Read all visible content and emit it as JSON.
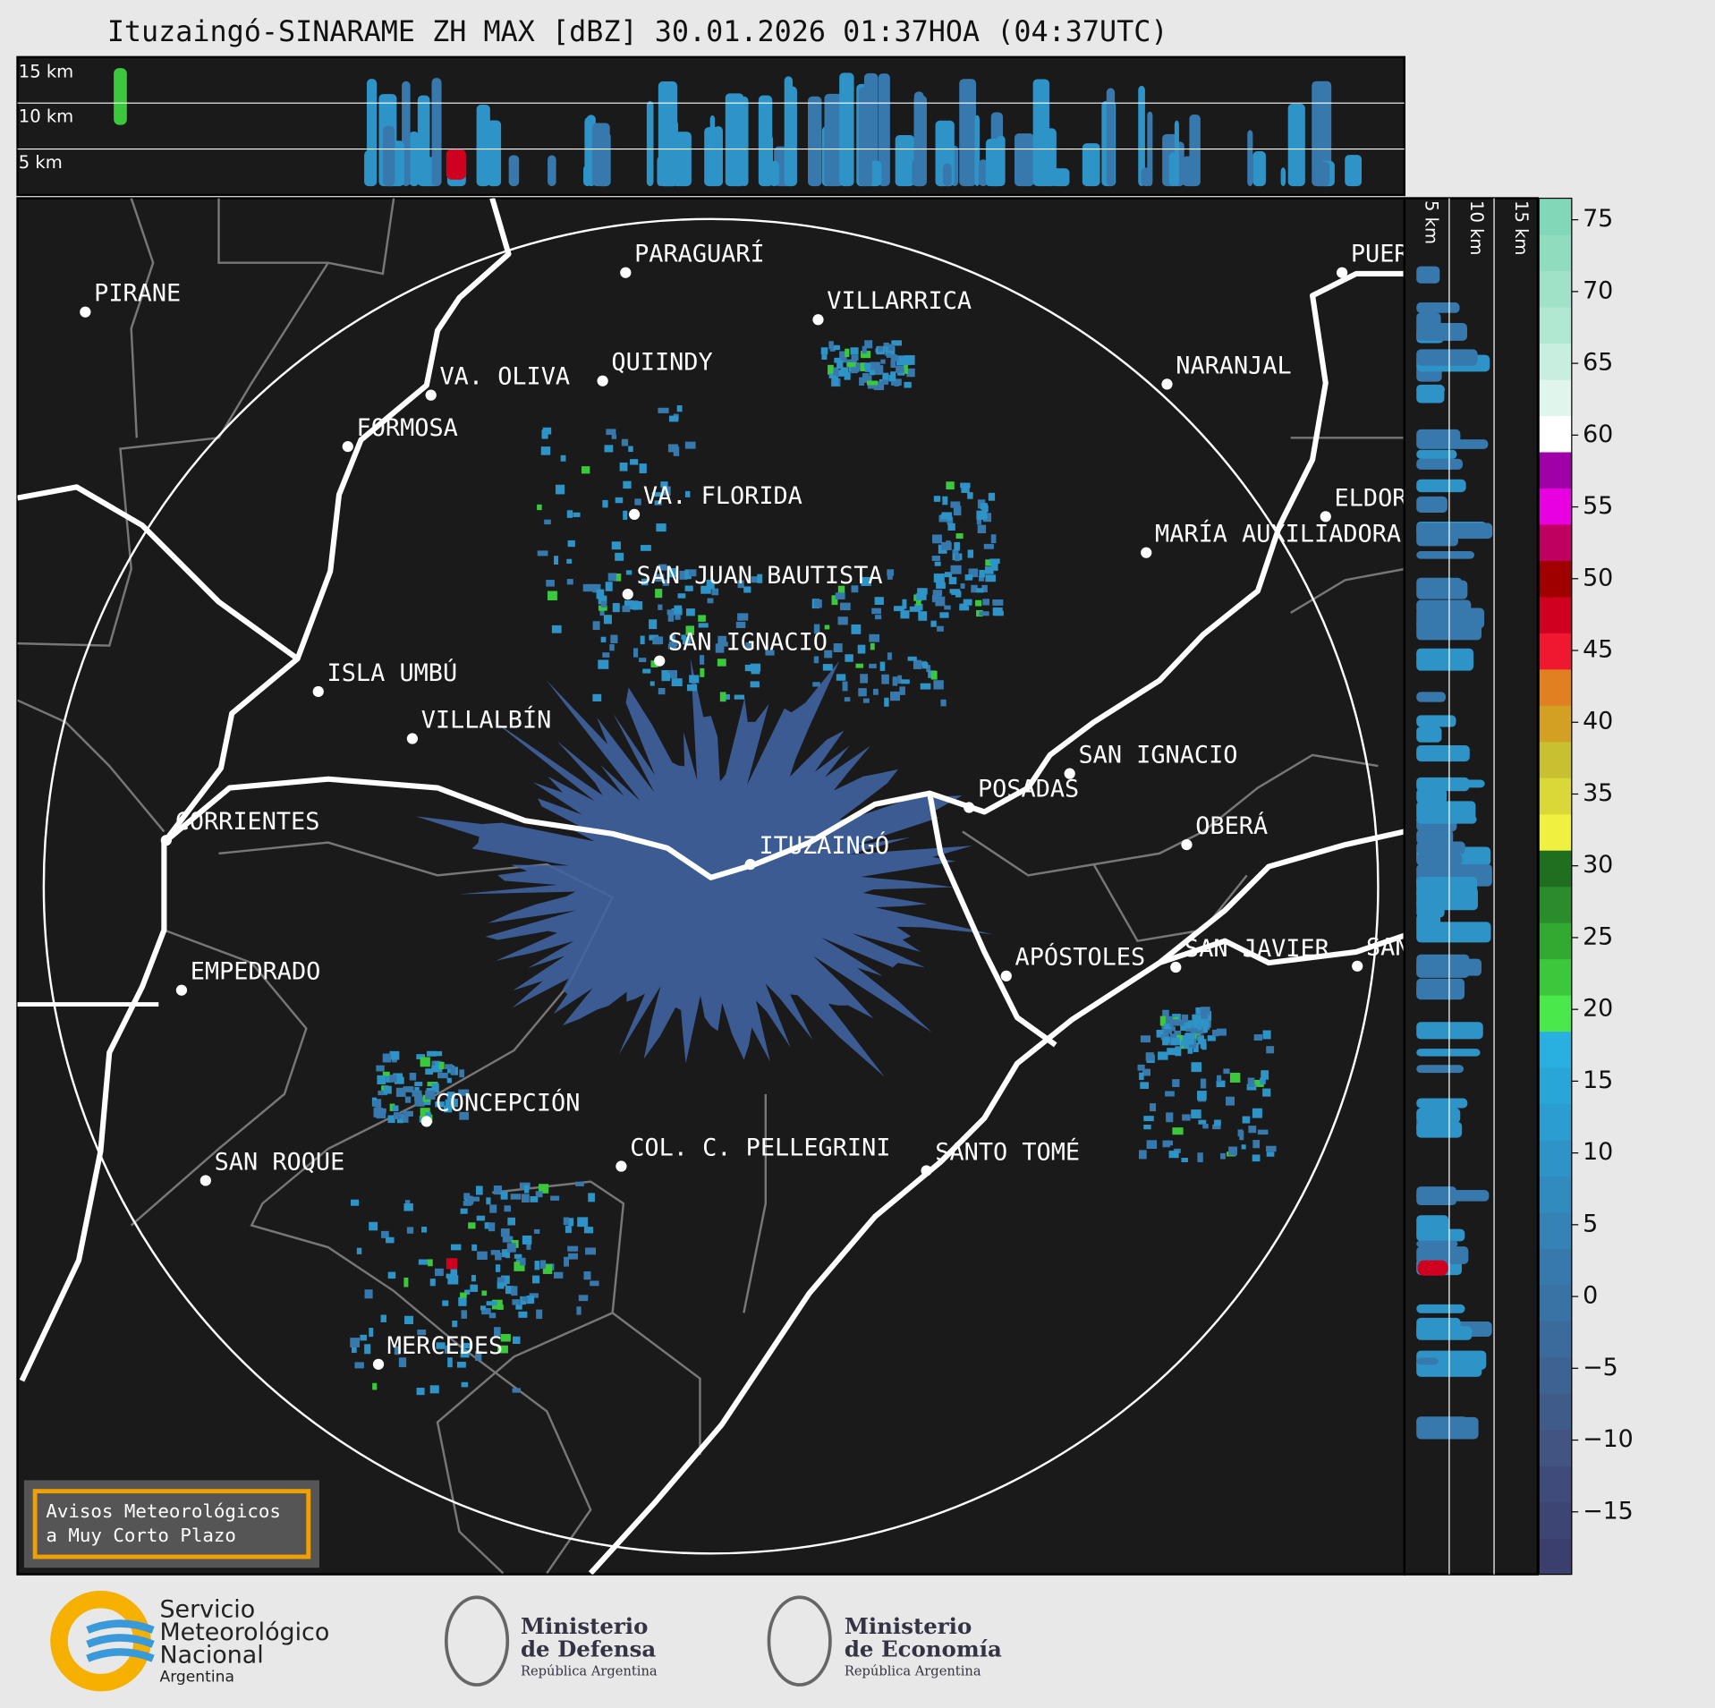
{
  "title": "Ituzaingó-SINARAME ZH MAX [dBZ] 30.01.2026 01:37HOA (04:37UTC)",
  "top_panel": {
    "labels": [
      "15 km",
      "10 km",
      "5 km"
    ]
  },
  "side_panel": {
    "labels": [
      "5 km",
      "10 km",
      "15 km"
    ]
  },
  "cities": [
    "PARAGUARÍ",
    "PIRANE",
    "VILLARRICA",
    "QUIINDY",
    "VA. OLIVA",
    "FORMOSA",
    "NARANJAL",
    "VA. FLORIDA",
    "ELDORADO",
    "MARÍA AUXILIADORA",
    "SAN JUAN BAUTISTA",
    "SAN IGNACIO",
    "ISLA UMBÚ",
    "VILLALBÍN",
    "SAN IGNACIO",
    "POSADAS",
    "CORRIENTES",
    "ITUZAINGÓ",
    "OBERÁ",
    "APÓSTOLES",
    "SAN JAVIER",
    "SAN",
    "EMPEDRADO",
    "CONCEPCIÓN",
    "SAN ROQUE",
    "COL. C. PELLEGRINI",
    "SANTO TOMÉ",
    "MERCEDES",
    "PUERTO IGUAZÚ"
  ],
  "colorbar": {
    "range": [
      -19.35,
      76.5
    ],
    "ticks": [
      75,
      70,
      65,
      60,
      55,
      50,
      45,
      40,
      35,
      30,
      25,
      20,
      15,
      10,
      5,
      0,
      {
        "value": -5,
        "label": "−5"
      },
      {
        "value": -10,
        "label": "−10"
      },
      {
        "value": -15,
        "label": "−15"
      }
    ],
    "colors": [
      "#3b3f6e",
      "#3d4574",
      "#3f4c7b",
      "#415482",
      "#3f5b8a",
      "#3d6393",
      "#3b6a9c",
      "#3972a5",
      "#3779ad",
      "#3482b6",
      "#318bbf",
      "#2e94c8",
      "#2b9dd0",
      "#28a6d8",
      "#2ab0e0",
      "#4ae84a",
      "#3cc83c",
      "#32aa32",
      "#2a8c2a",
      "#206e20",
      "#f0f040",
      "#d8d838",
      "#c8c030",
      "#d4a024",
      "#e08020",
      "#f01830",
      "#d00020",
      "#a00000",
      "#c00060",
      "#e800e0",
      "#a000a8",
      "#ffffff",
      "#e0f5ec",
      "#c8eedf",
      "#b0e8d2",
      "#a0e2c8",
      "#90dcbe",
      "#80d8b8"
    ]
  },
  "warning": {
    "lines": [
      "Avisos Meteorológicos",
      "a Muy Corto Plazo"
    ]
  },
  "logos": {
    "smn": [
      "Servicio",
      "Meteorológico",
      "Nacional",
      "Argentina"
    ],
    "defensa": [
      "Ministerio",
      "de Defensa",
      "República Argentina"
    ],
    "economia": [
      "Ministerio",
      "de Economía",
      "República Argentina"
    ]
  }
}
